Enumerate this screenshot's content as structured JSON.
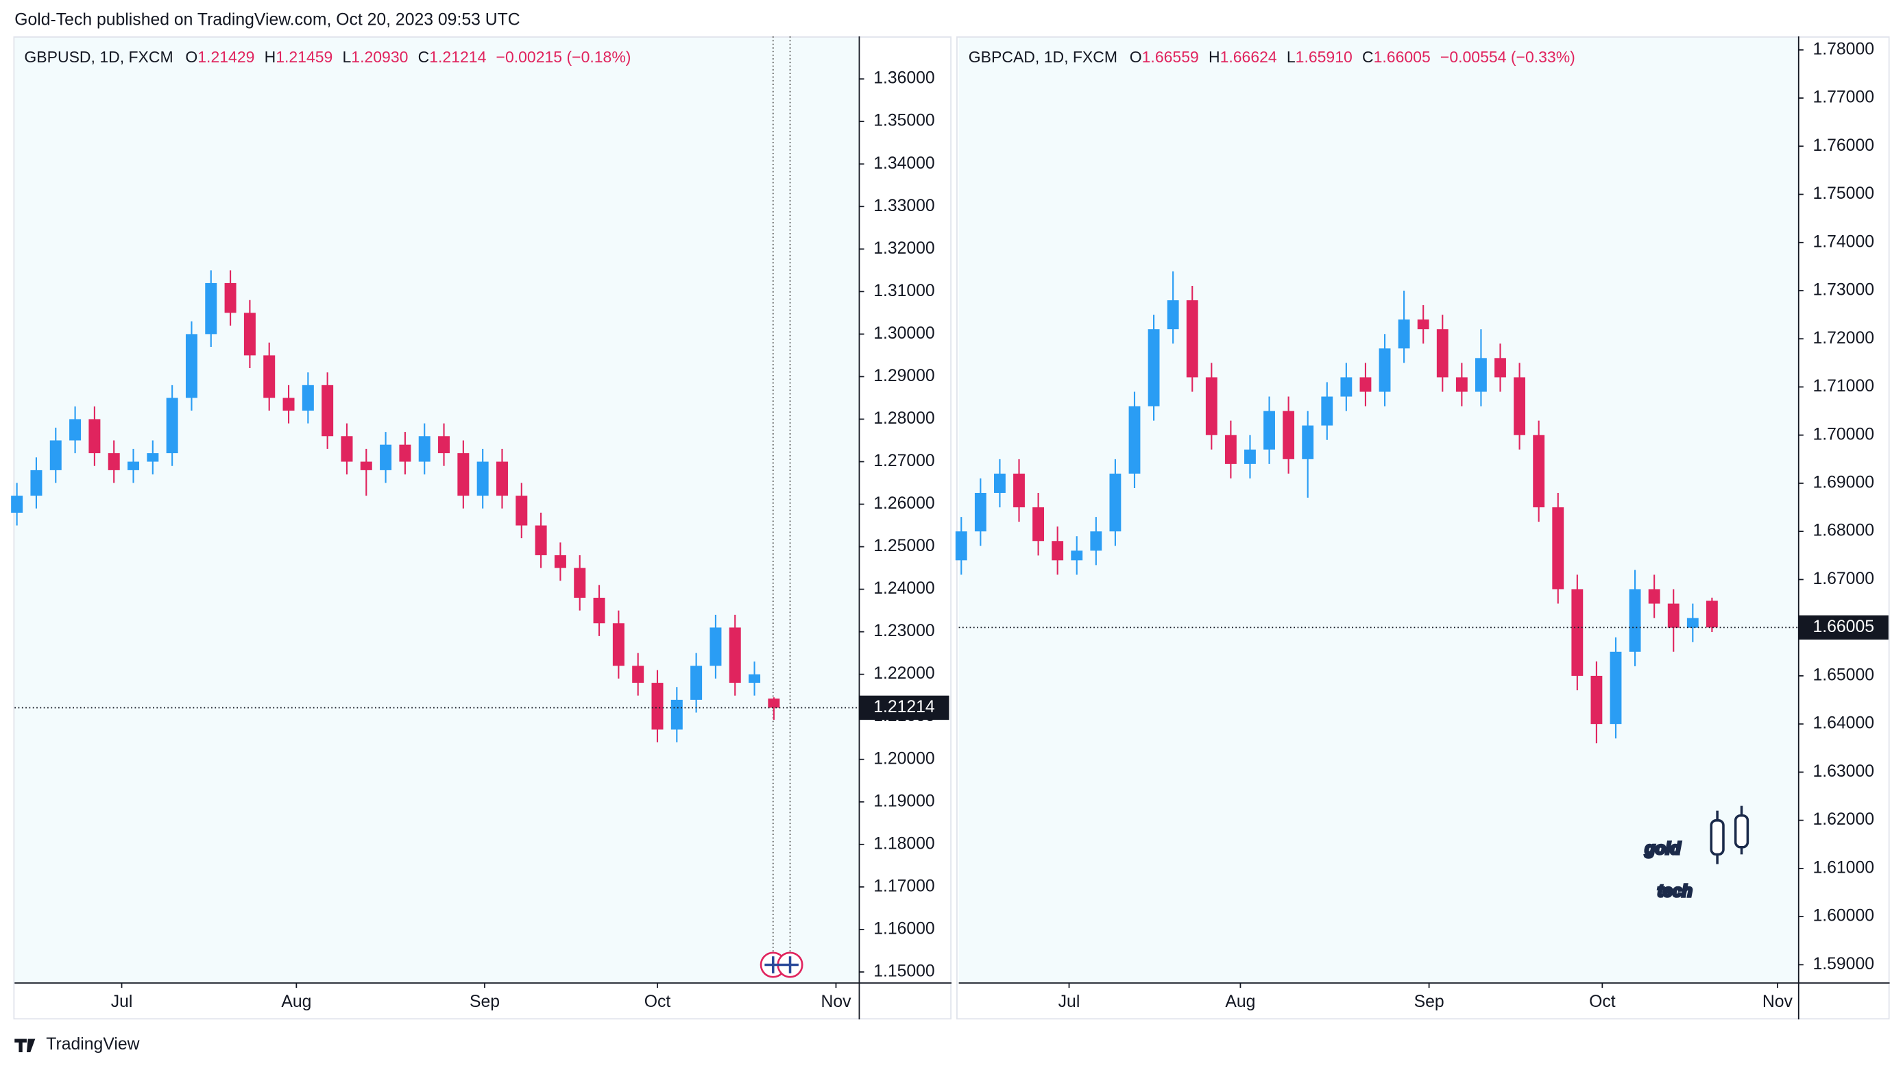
{
  "header": "Gold-Tech published on TradingView.com, Oct 20, 2023 09:53 UTC",
  "footer": "TradingView",
  "logo": [
    "gold",
    "tech"
  ],
  "chart_data": [
    {
      "type": "candlestick",
      "symbol": "GBPUSD, 1D, FXCM",
      "ohlc": [
        {
          "label": "O",
          "value": "1.21429"
        },
        {
          "label": "H",
          "value": "1.21459"
        },
        {
          "label": "L",
          "value": "1.20930"
        },
        {
          "label": "C",
          "value": "1.21214"
        }
      ],
      "change": "−0.00215 (−0.18%)",
      "up_color": "#2a9df4",
      "down_color": "#e0245e",
      "open": [
        1.258,
        1.262,
        1.268,
        1.275,
        1.28,
        1.272,
        1.268,
        1.27,
        1.272,
        1.285,
        1.3,
        1.312,
        1.305,
        1.295,
        1.285,
        1.282,
        1.288,
        1.276,
        1.27,
        1.268,
        1.274,
        1.27,
        1.276,
        1.272,
        1.262,
        1.27,
        1.262,
        1.255,
        1.248,
        1.245,
        1.238,
        1.232,
        1.222,
        1.218,
        1.207,
        1.214,
        1.222,
        1.231,
        1.218,
        1.21429
      ],
      "high": [
        1.265,
        1.271,
        1.278,
        1.283,
        1.283,
        1.275,
        1.273,
        1.275,
        1.288,
        1.303,
        1.315,
        1.315,
        1.308,
        1.298,
        1.288,
        1.291,
        1.291,
        1.279,
        1.273,
        1.277,
        1.277,
        1.279,
        1.279,
        1.275,
        1.273,
        1.273,
        1.265,
        1.258,
        1.251,
        1.248,
        1.241,
        1.235,
        1.225,
        1.221,
        1.217,
        1.225,
        1.234,
        1.234,
        1.223,
        1.21459
      ],
      "low": [
        1.255,
        1.259,
        1.265,
        1.272,
        1.269,
        1.265,
        1.265,
        1.267,
        1.269,
        1.282,
        1.297,
        1.302,
        1.292,
        1.282,
        1.279,
        1.279,
        1.273,
        1.267,
        1.262,
        1.265,
        1.267,
        1.267,
        1.269,
        1.259,
        1.259,
        1.259,
        1.252,
        1.245,
        1.242,
        1.235,
        1.229,
        1.219,
        1.215,
        1.204,
        1.204,
        1.211,
        1.219,
        1.215,
        1.215,
        1.2093
      ],
      "close": [
        1.262,
        1.268,
        1.275,
        1.28,
        1.272,
        1.268,
        1.27,
        1.272,
        1.285,
        1.3,
        1.312,
        1.305,
        1.295,
        1.285,
        1.282,
        1.288,
        1.276,
        1.27,
        1.268,
        1.274,
        1.27,
        1.276,
        1.272,
        1.262,
        1.27,
        1.262,
        1.255,
        1.248,
        1.245,
        1.238,
        1.232,
        1.222,
        1.218,
        1.207,
        1.214,
        1.222,
        1.231,
        1.218,
        1.22,
        1.21214
      ],
      "xlim": [
        -0.12,
        43.4
      ],
      "xticks": [
        {
          "value": 5.4,
          "label": "Jul"
        },
        {
          "value": 14.4,
          "label": "Aug"
        },
        {
          "value": 24.1,
          "label": "Sep"
        },
        {
          "value": 33,
          "label": "Oct"
        },
        {
          "value": 42.2,
          "label": "Nov"
        }
      ],
      "ylim": [
        1.1474,
        1.37
      ],
      "yticks": [
        {
          "value": 1.15,
          "label": "1.15000"
        },
        {
          "value": 1.16,
          "label": "1.16000"
        },
        {
          "value": 1.17,
          "label": "1.17000"
        },
        {
          "value": 1.18,
          "label": "1.18000"
        },
        {
          "value": 1.19,
          "label": "1.19000"
        },
        {
          "value": 1.2,
          "label": "1.20000"
        },
        {
          "value": 1.21,
          "label": "1.21000"
        },
        {
          "value": 1.22,
          "label": "1.22000"
        },
        {
          "value": 1.23,
          "label": "1.23000"
        },
        {
          "value": 1.24,
          "label": "1.24000"
        },
        {
          "value": 1.25,
          "label": "1.25000"
        },
        {
          "value": 1.26,
          "label": "1.26000"
        },
        {
          "value": 1.27,
          "label": "1.27000"
        },
        {
          "value": 1.28,
          "label": "1.28000"
        },
        {
          "value": 1.29,
          "label": "1.29000"
        },
        {
          "value": 1.3,
          "label": "1.30000"
        },
        {
          "value": 1.31,
          "label": "1.31000"
        },
        {
          "value": 1.32,
          "label": "1.32000"
        },
        {
          "value": 1.33,
          "label": "1.33000"
        },
        {
          "value": 1.34,
          "label": "1.34000"
        },
        {
          "value": 1.35,
          "label": "1.35000"
        },
        {
          "value": 1.36,
          "label": "1.36000"
        }
      ]
    },
    {
      "type": "candlestick",
      "symbol": "GBPCAD, 1D, FXCM",
      "ohlc": [
        {
          "label": "O",
          "value": "1.66559"
        },
        {
          "label": "H",
          "value": "1.66624"
        },
        {
          "label": "L",
          "value": "1.65910"
        },
        {
          "label": "C",
          "value": "1.66005"
        }
      ],
      "change": "−0.00554 (−0.33%)",
      "up_color": "#2a9df4",
      "down_color": "#e0245e",
      "open": [
        1.674,
        1.68,
        1.688,
        1.692,
        1.685,
        1.678,
        1.674,
        1.676,
        1.68,
        1.692,
        1.706,
        1.722,
        1.728,
        1.712,
        1.7,
        1.694,
        1.697,
        1.705,
        1.695,
        1.702,
        1.708,
        1.712,
        1.709,
        1.718,
        1.724,
        1.722,
        1.712,
        1.709,
        1.716,
        1.712,
        1.7,
        1.685,
        1.668,
        1.65,
        1.64,
        1.655,
        1.668,
        1.665,
        1.66,
        1.66559
      ],
      "high": [
        1.683,
        1.691,
        1.695,
        1.695,
        1.688,
        1.681,
        1.679,
        1.683,
        1.695,
        1.709,
        1.725,
        1.734,
        1.731,
        1.715,
        1.703,
        1.7,
        1.708,
        1.708,
        1.705,
        1.711,
        1.715,
        1.715,
        1.721,
        1.73,
        1.727,
        1.725,
        1.715,
        1.722,
        1.719,
        1.715,
        1.703,
        1.688,
        1.671,
        1.653,
        1.658,
        1.672,
        1.671,
        1.668,
        1.665,
        1.66624
      ],
      "low": [
        1.671,
        1.677,
        1.685,
        1.682,
        1.675,
        1.671,
        1.671,
        1.673,
        1.677,
        1.689,
        1.703,
        1.719,
        1.709,
        1.697,
        1.691,
        1.691,
        1.694,
        1.692,
        1.687,
        1.699,
        1.705,
        1.706,
        1.706,
        1.715,
        1.719,
        1.709,
        1.706,
        1.706,
        1.709,
        1.697,
        1.682,
        1.665,
        1.647,
        1.636,
        1.637,
        1.652,
        1.662,
        1.655,
        1.657,
        1.6591
      ],
      "close": [
        1.68,
        1.688,
        1.692,
        1.685,
        1.678,
        1.674,
        1.676,
        1.68,
        1.692,
        1.706,
        1.722,
        1.728,
        1.712,
        1.7,
        1.694,
        1.697,
        1.705,
        1.695,
        1.702,
        1.708,
        1.712,
        1.709,
        1.718,
        1.724,
        1.722,
        1.712,
        1.709,
        1.716,
        1.712,
        1.7,
        1.685,
        1.668,
        1.65,
        1.64,
        1.655,
        1.668,
        1.665,
        1.66,
        1.662,
        1.66005
      ],
      "xlim": [
        -0.13,
        43.5
      ],
      "xticks": [
        {
          "value": 5.6,
          "label": "Jul"
        },
        {
          "value": 14.5,
          "label": "Aug"
        },
        {
          "value": 24.3,
          "label": "Sep"
        },
        {
          "value": 33.3,
          "label": "Oct"
        },
        {
          "value": 42.4,
          "label": "Nov"
        }
      ],
      "ylim": [
        1.5862,
        1.7828
      ],
      "yticks": [
        {
          "value": 1.59,
          "label": "1.59000"
        },
        {
          "value": 1.6,
          "label": "1.60000"
        },
        {
          "value": 1.61,
          "label": "1.61000"
        },
        {
          "value": 1.62,
          "label": "1.62000"
        },
        {
          "value": 1.63,
          "label": "1.63000"
        },
        {
          "value": 1.64,
          "label": "1.64000"
        },
        {
          "value": 1.65,
          "label": "1.65000"
        },
        {
          "value": 1.66,
          "label": "1.66000"
        },
        {
          "value": 1.67,
          "label": "1.67000"
        },
        {
          "value": 1.68,
          "label": "1.68000"
        },
        {
          "value": 1.69,
          "label": "1.69000"
        },
        {
          "value": 1.7,
          "label": "1.70000"
        },
        {
          "value": 1.71,
          "label": "1.71000"
        },
        {
          "value": 1.72,
          "label": "1.72000"
        },
        {
          "value": 1.73,
          "label": "1.73000"
        },
        {
          "value": 1.74,
          "label": "1.74000"
        },
        {
          "value": 1.75,
          "label": "1.75000"
        },
        {
          "value": 1.76,
          "label": "1.76000"
        },
        {
          "value": 1.77,
          "label": "1.77000"
        },
        {
          "value": 1.78,
          "label": "1.78000"
        }
      ]
    }
  ]
}
